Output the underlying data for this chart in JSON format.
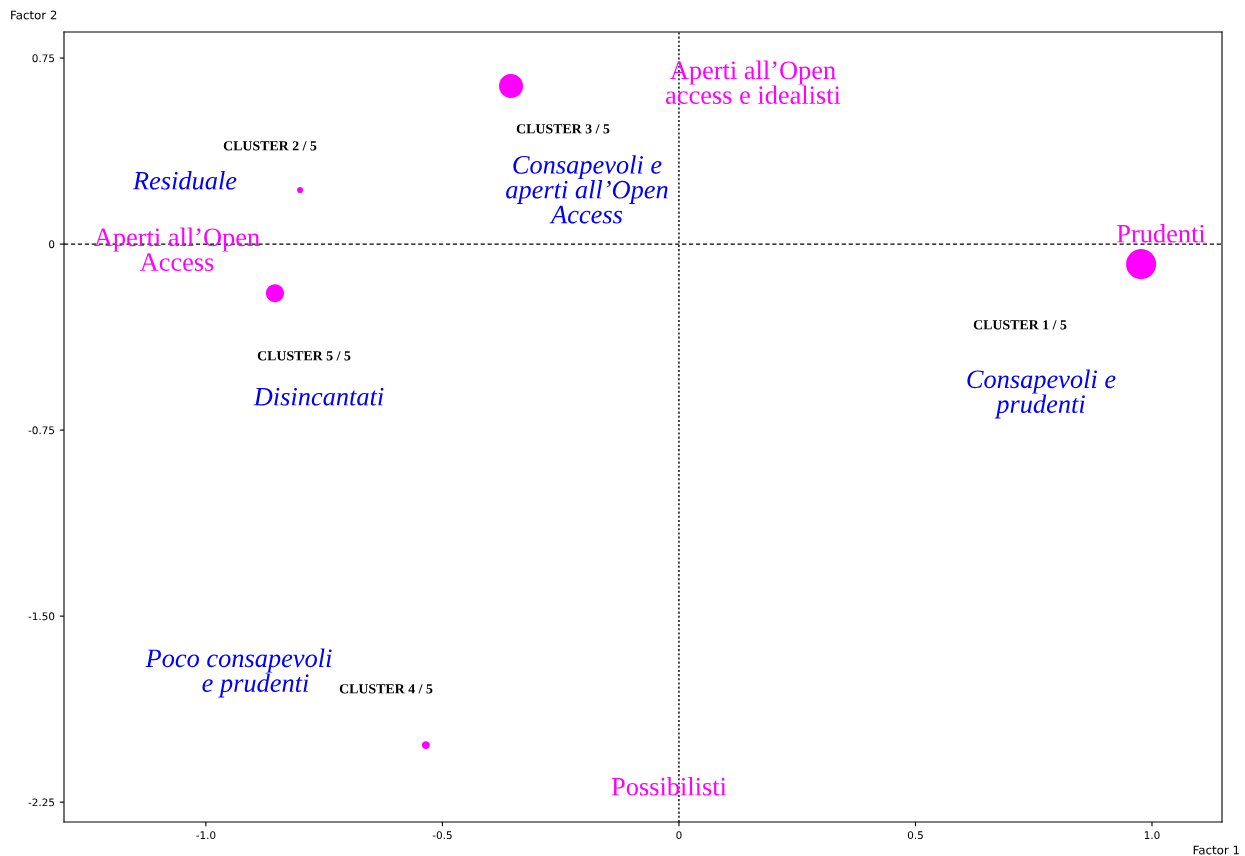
{
  "chart_data": {
    "type": "bubble",
    "xlabel": "Factor 1",
    "ylabel": "Factor 2",
    "x": [
      0.977,
      -0.801,
      -0.355,
      -0.535,
      -0.854
    ],
    "series": [
      {
        "color": "#ff00ff",
        "values": [
          -0.081,
          0.218,
          0.637,
          -2.02,
          -0.198
        ],
        "sizes": [
          1,
          0.04,
          0.64,
          0.07,
          0.36
        ]
      }
    ],
    "xlim": [
      -1.3,
      1.148
    ],
    "ylim": [
      -2.33,
      0.855
    ],
    "xticks": [
      {
        "value": -1,
        "label": "-1.0"
      },
      -0.5,
      0,
      0.5,
      {
        "value": 1,
        "label": "1.0"
      }
    ],
    "yticks": [
      0.75,
      0,
      -0.75,
      {
        "value": -1.5,
        "label": "-1.50"
      },
      -2.25
    ],
    "ref_lines": [
      {
        "axis": "x",
        "value": 0,
        "color": "#000000",
        "line_style": "dotted"
      },
      {
        "axis": "y",
        "value": 0,
        "color": "#000000",
        "line_style": "dashed"
      }
    ],
    "grid": false,
    "legend": false,
    "marker": "circle",
    "annotations": [
      "CLUSTER 1 / 5",
      "CLUSTER 2 / 5",
      "CLUSTER 3 / 5",
      "CLUSTER 4 / 5",
      "CLUSTER 5 / 5",
      "Consapevoli e\nprudenti",
      "Residuale",
      "Consapevoli e\naperti all’Open\nAccess",
      "Poco consapevoli\n     e prudenti",
      "Disincantati",
      "Prudenti",
      "Aperti all’Open\naccess e idealisti",
      "Aperti all’Open\nAccess",
      "Possibilisti"
    ]
  }
}
